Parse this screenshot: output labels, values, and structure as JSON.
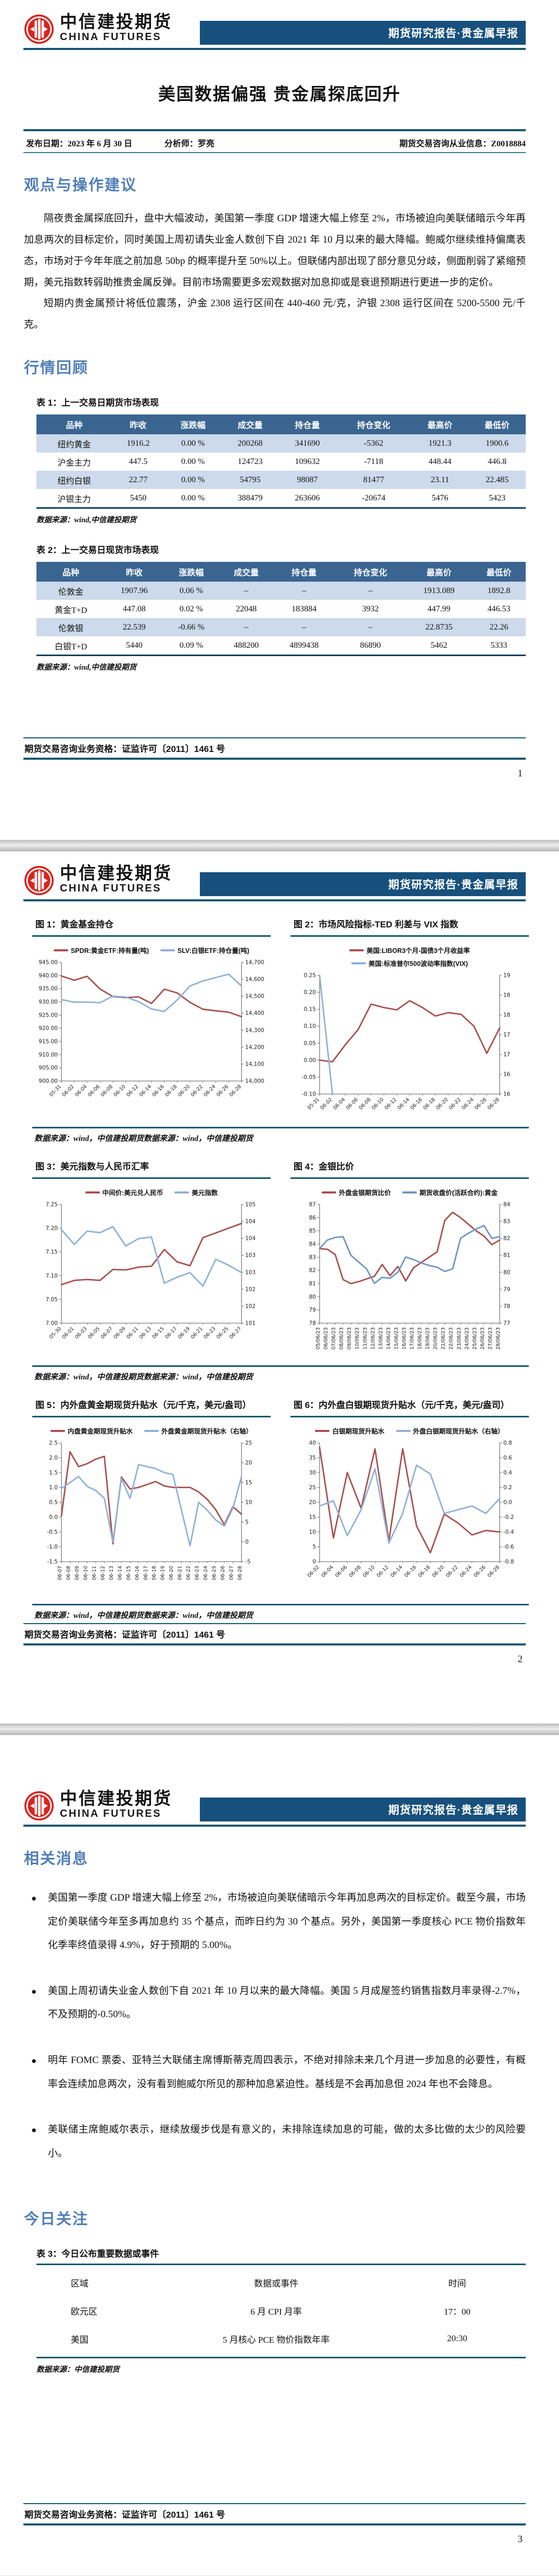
{
  "report": {
    "brand_cn": "中信建投期货",
    "brand_en": "CHINA FUTURES",
    "banner": "期货研究报告·贵金属早报",
    "title": "美国数据偏强 贵金属探底回升",
    "info": {
      "publish_date": "发布日期：2023 年 6 月 30 日",
      "analyst": "分析师：罗亮",
      "license_info": "期货交易咨询从业信息：Z0018884"
    },
    "footer_license": "期货交易咨询业务资格：证监许可〔2011〕1461 号",
    "page_numbers": [
      "1",
      "2",
      "3"
    ]
  },
  "page1": {
    "section1_heading": "观点与操作建议",
    "paragraph1": "隔夜贵金属探底回升，盘中大幅波动，美国第一季度 GDP 增速大幅上修至 2%，市场被迫向美联储暗示今年再加息两次的目标定价，同时美国上周初请失业金人数创下自 2021 年 10 月以来的最大降幅。鲍威尔继续维持偏鹰表态，市场对于今年年底之前加息 50bp 的概率提升至 50%以上。但联储内部出现了部分意见分歧，侧面削弱了紧缩预期，美元指数转弱助推贵金属反弹。目前市场需要更多宏观数据对加息抑或是衰退预期进行更进一步的定价。",
    "paragraph2": "短期内贵金属预计将低位震荡，沪金 2308 运行区间在 440-460 元/克，沪银 2308 运行区间在 5200-5500 元/千克。",
    "section2_heading": "行情回顾",
    "table1": {
      "caption": "表 1：上一交易日期货市场表现",
      "headers": [
        "品种",
        "昨收",
        "涨跌幅",
        "成交量",
        "持仓量",
        "持仓变化",
        "最高价",
        "最低价"
      ],
      "rows": [
        [
          "纽约黄金",
          "1916.2",
          "0.00 %",
          "200268",
          "341690",
          "-5362",
          "1921.3",
          "1900.6"
        ],
        [
          "沪金主力",
          "447.5",
          "0.00 %",
          "124723",
          "109632",
          "-7118",
          "448.44",
          "446.8"
        ],
        [
          "纽约白银",
          "22.77",
          "0.00 %",
          "54795",
          "98087",
          "81477",
          "23.11",
          "22.485"
        ],
        [
          "沪银主力",
          "5450",
          "0.00 %",
          "388479",
          "263606",
          "-20674",
          "5476",
          "5423"
        ]
      ],
      "source": "数据来源：wind,中信建投期货"
    },
    "table2": {
      "caption": "表 2：上一交易日现货市场表现",
      "headers": [
        "品种",
        "昨收",
        "涨跌幅",
        "成交量",
        "持仓量",
        "持仓变化",
        "最高价",
        "最低价"
      ],
      "rows": [
        [
          "伦敦金",
          "1907.96",
          "0.06 %",
          "–",
          "–",
          "–",
          "1913.089",
          "1892.8"
        ],
        [
          "黄金T+D",
          "447.08",
          "0.02 %",
          "22048",
          "183884",
          "3932",
          "447.99",
          "446.53"
        ],
        [
          "伦敦银",
          "22.539",
          "-0.66 %",
          "–",
          "–",
          "–",
          "22.8735",
          "22.26"
        ],
        [
          "白银T+D",
          "5440",
          "0.09 %",
          "488200",
          "4899438",
          "86890",
          "5462",
          "5333"
        ]
      ],
      "source": "数据来源：wind,中信建投期货"
    }
  },
  "page2": {
    "sources": [
      "数据来源：wind，中信建投期货数据来源：wind，中信建投期货",
      "数据来源：wind，中信建投期货数据来源：wind，中信建投期货",
      "数据来源：wind，中信建投期货数据来源：wind，中信建投期货"
    ]
  },
  "chart_data": [
    {
      "type": "line",
      "title": "图 1：黄金基金持仓",
      "x": [
        "05-31",
        "06-02",
        "06-04",
        "06-06",
        "06-08",
        "06-10",
        "06-12",
        "06-14",
        "06-16",
        "06-18",
        "06-20",
        "06-22",
        "06-24",
        "06-26",
        "06-28"
      ],
      "x_rotate": 45,
      "left_axis": {
        "min": 900,
        "max": 945,
        "ticks": [
          "945.00",
          "940.00",
          "935.00",
          "930.00",
          "925.00",
          "920.00",
          "915.00",
          "910.00",
          "905.00",
          "900.00"
        ]
      },
      "right_axis": {
        "min": 14000,
        "max": 14700,
        "ticks": [
          "14,700",
          "14,600",
          "14,500",
          "14,400",
          "14,300",
          "14,200",
          "14,100",
          "14,000"
        ]
      },
      "series": [
        {
          "name": "SPDR:黄金ETF:持有量(吨)",
          "color": "#a8504e",
          "axis": "left",
          "values": [
            939.8,
            938.2,
            939.7,
            934.9,
            932.0,
            931.6,
            931.9,
            929.4,
            934.8,
            933.4,
            929.8,
            927.2,
            926.6,
            926.1,
            924.4
          ]
        },
        {
          "name": "SLV:白银ETF:持仓量(吨)",
          "color": "#8fb1d8",
          "axis": "right",
          "values": [
            14480,
            14465,
            14465,
            14462,
            14500,
            14495,
            14468,
            14425,
            14410,
            14478,
            14560,
            14590,
            14610,
            14630,
            14560
          ]
        }
      ]
    },
    {
      "type": "line",
      "title": "图 2：市场风险指标-TED 利差与 VIX 指数",
      "x": [
        "05-31",
        "06-02",
        "06-04",
        "06-06",
        "06-08",
        "06-10",
        "06-12",
        "06-14",
        "06-16",
        "06-18",
        "06-20",
        "06-22",
        "06-24",
        "06-26",
        "06-28"
      ],
      "x_rotate": 45,
      "left_axis": {
        "min": -0.1,
        "max": 0.25,
        "ticks": [
          "0.25",
          "0.20",
          "0.15",
          "0.10",
          "0.05",
          "0.00",
          "-0.05",
          "-0.10"
        ]
      },
      "right_axis": {
        "min": 16,
        "max": 19,
        "ticks": [
          "19",
          "18",
          "18",
          "17",
          "17",
          "16",
          "16"
        ]
      },
      "series": [
        {
          "name": "美国:LIBOR3个月-国债3个月收益率",
          "color": "#a8504e",
          "axis": "left",
          "values": [
            0.0,
            -0.005,
            0.045,
            0.09,
            0.165,
            0.155,
            0.148,
            0.175,
            0.155,
            0.13,
            0.14,
            0.135,
            0.1,
            0.02,
            0.095
          ]
        },
        {
          "name": "美国:标准普尔500波动率指数(VIX)",
          "color": "#8fb1d8",
          "axis": "right",
          "values": [
            19.0,
            16.0,
            null,
            null,
            null,
            null,
            null,
            null,
            null,
            null,
            null,
            null,
            null,
            null,
            null
          ]
        }
      ]
    },
    {
      "type": "line",
      "title": "图 3：美元指数与人民币汇率",
      "x": [
        "05-30",
        "06-01",
        "06-03",
        "06-05",
        "06-07",
        "06-09",
        "06-11",
        "06-13",
        "06-15",
        "06-17",
        "06-19",
        "06-21",
        "06-23",
        "06-25",
        "06-27"
      ],
      "x_rotate": 45,
      "left_axis": {
        "min": 7.0,
        "max": 7.25,
        "ticks": [
          "7.25",
          "7.20",
          "7.15",
          "7.10",
          "7.05",
          "7.00"
        ]
      },
      "right_axis": {
        "min": 101,
        "max": 105,
        "ticks": [
          "105",
          "104",
          "104",
          "103",
          "103",
          "102",
          "102",
          "101"
        ]
      },
      "series": [
        {
          "name": "中间价:美元兑人民币",
          "color": "#a8504e",
          "axis": "left",
          "values": [
            7.081,
            7.09,
            7.092,
            7.09,
            7.113,
            7.112,
            7.118,
            7.12,
            7.155,
            7.129,
            7.121,
            7.18,
            7.19,
            7.2,
            7.21
          ]
        },
        {
          "name": "美元指数",
          "color": "#8fb1d8",
          "axis": "right",
          "values": [
            104.15,
            103.65,
            104.1,
            104.05,
            104.25,
            103.6,
            103.85,
            103.9,
            102.35,
            102.55,
            102.7,
            102.25,
            103.15,
            102.95,
            102.7
          ]
        }
      ]
    },
    {
      "type": "line",
      "title": "图 4：金银比价",
      "x": [
        "05/06/23",
        "06/06/23",
        "07/06/23",
        "08/06/23",
        "09/06/23",
        "10/06/23",
        "11/06/23",
        "12/06/23",
        "13/06/23",
        "14/06/23",
        "15/06/23",
        "16/06/23",
        "17/06/23",
        "18/06/23",
        "19/06/23",
        "20/06/23",
        "21/06/23",
        "22/06/23",
        "23/06/23",
        "24/06/23",
        "25/06/23",
        "26/06/23",
        "27/06/23",
        "28/06/23"
      ],
      "x_rotate": 90,
      "left_axis": {
        "min": 78,
        "max": 87,
        "ticks": [
          "87",
          "86",
          "85",
          "84",
          "83",
          "82",
          "81",
          "80",
          "79",
          "78"
        ]
      },
      "right_axis": {
        "min": 77,
        "max": 84,
        "ticks": [
          "84",
          "83",
          "82",
          "81",
          "80",
          "79",
          "78",
          "77"
        ]
      },
      "series": [
        {
          "name": "外盘金银期货比价",
          "color": "#a8504e",
          "axis": "left",
          "values": [
            83.65,
            83.6,
            83.2,
            81.3,
            81.0,
            81.15,
            81.35,
            81.55,
            82.45,
            81.6,
            82.3,
            81.2,
            82.2,
            82.6,
            83.0,
            83.4,
            85.8,
            86.4,
            86.0,
            85.5,
            85.0,
            84.6,
            83.95,
            84.3
          ]
        },
        {
          "name": "期货收盘价(活跃合约):黄金",
          "color": "#6f95c2",
          "axis": "right",
          "values": [
            81.4,
            81.9,
            82.05,
            82.1,
            81.0,
            80.6,
            80.2,
            79.35,
            79.7,
            79.65,
            80.0,
            80.9,
            80.75,
            80.55,
            80.4,
            80.3,
            80.05,
            80.2,
            82.0,
            82.3,
            82.55,
            82.75,
            82.0,
            82.1
          ]
        }
      ]
    },
    {
      "type": "line",
      "title": "图 5：内外盘黄金期现货升贴水（元/千克，美元/盎司）",
      "x": [
        "06-07",
        "06-08",
        "06-09",
        "06-10",
        "06-11",
        "06-12",
        "06-13",
        "06-14",
        "06-15",
        "06-16",
        "06-17",
        "06-18",
        "06-19",
        "06-20",
        "06-21",
        "06-22",
        "06-23",
        "06-24",
        "06-25",
        "06-26",
        "06-27",
        "06-28"
      ],
      "x_rotate": 90,
      "left_axis": {
        "min": -1.5,
        "max": 2.5,
        "ticks": [
          "2.5",
          "2.0",
          "1.5",
          "1.0",
          "0.5",
          "0.0",
          "-0.5",
          "-1.0",
          "-1.5"
        ]
      },
      "right_axis": {
        "min": -5,
        "max": 25,
        "ticks": [
          "25",
          "20",
          "15",
          "10",
          "5",
          "0",
          "-5"
        ]
      },
      "series": [
        {
          "name": "内盘黄金期现货升贴水",
          "color": "#a8504e",
          "axis": "left",
          "values": [
            0.05,
            2.2,
            1.7,
            1.8,
            1.95,
            2.05,
            -0.9,
            1.35,
            0.95,
            1.0,
            1.1,
            1.2,
            1.05,
            1.0,
            1.0,
            1.0,
            0.85,
            0.6,
            0.25,
            -0.25,
            0.35,
            0.1
          ]
        },
        {
          "name": "外盘黄金期现货升贴水（右轴）",
          "color": "#8fb1d8",
          "axis": "right",
          "values": [
            13.5,
            15.0,
            16.5,
            14.0,
            13.0,
            11.0,
            0.0,
            16.0,
            11.0,
            19.5,
            19.0,
            18.5,
            17.5,
            17.0,
            8.0,
            -1.0,
            10.0,
            8.0,
            5.5,
            4.0,
            8.5,
            16.5
          ]
        }
      ]
    },
    {
      "type": "line",
      "title": "图 6：内外盘白银期现货升贴水（元/千克，美元/盎司）",
      "x": [
        "06-02",
        "06-04",
        "06-06",
        "06-08",
        "06-10",
        "06-12",
        "06-14",
        "06-16",
        "06-18",
        "06-20",
        "06-22",
        "06-24",
        "06-26",
        "06-28"
      ],
      "x_rotate": 45,
      "left_axis": {
        "min": 0,
        "max": 40,
        "ticks": [
          "40",
          "35",
          "30",
          "25",
          "20",
          "15",
          "10",
          "5",
          "0"
        ]
      },
      "right_axis": {
        "min": -0.8,
        "max": 0.8,
        "ticks": [
          "0.8",
          "0.6",
          "0.4",
          "0.2",
          "0.0",
          "-0.2",
          "-0.4",
          "-0.6",
          "-0.8"
        ]
      },
      "series": [
        {
          "name": "白银期现货升贴水",
          "color": "#a8504e",
          "axis": "left",
          "values": [
            38.5,
            8.0,
            30.0,
            18.0,
            38.0,
            7.0,
            38.0,
            12.0,
            3.0,
            16.0,
            13.0,
            9.0,
            10.5,
            10.0
          ]
        },
        {
          "name": "外盘白银期现货升贴水（右轴）",
          "color": "#8fb1d8",
          "axis": "right",
          "values": [
            -0.05,
            0.02,
            -0.45,
            -0.1,
            0.45,
            -0.55,
            -0.15,
            0.5,
            0.38,
            -0.15,
            -0.1,
            -0.05,
            -0.15,
            0.05
          ]
        }
      ]
    }
  ],
  "page3": {
    "section_heading": "相关消息",
    "bullets": [
      "美国第一季度 GDP 增速大幅上修至 2%，市场被迫向美联储暗示今年再加息两次的目标定价。截至今晨，市场定价美联储今年至多再加息约 35 个基点，而昨日约为 30 个基点。另外，美国第一季度核心 PCE 物价指数年化季率终值录得 4.9%，好于预期的 5.00%。",
      "美国上周初请失业金人数创下自 2021 年 10 月以来的最大降幅。美国 5 月成屋签约销售指数月率录得-2.7%，不及预期的-0.50%。",
      "明年 FOMC 票委、亚特兰大联储主席博斯蒂克周四表示，不绝对排除未来几个月进一步加息的必要性，有概率会连续加息两次，没有看到鲍威尔所见的那种加息紧迫性。基线是不会再加息但 2024 年也不会降息。",
      "美联储主席鲍威尔表示，继续放缓步伐是有意义的，未排除连续加息的可能，做的太多比做的太少的风险要小。"
    ],
    "today_heading": "今日关注",
    "table3": {
      "caption": "表 3：今日公布重要数据或事件",
      "headers": [
        "区域",
        "数据或事件",
        "时间"
      ],
      "rows": [
        [
          "欧元区",
          "6 月 CPI 月率",
          "17：00"
        ],
        [
          "美国",
          "5 月核心 PCE 物价指数年率",
          "20:30"
        ]
      ],
      "source": "数据来源：中信建投期货"
    }
  }
}
